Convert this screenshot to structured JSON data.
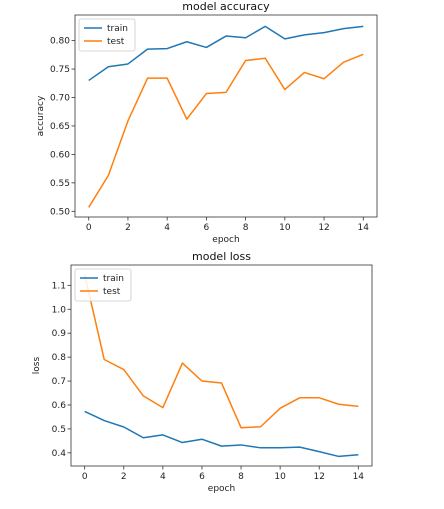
{
  "chart_data": [
    {
      "type": "line",
      "title": "model accuracy",
      "xlabel": "epoch",
      "ylabel": "accuracy",
      "x": [
        0,
        1,
        2,
        3,
        4,
        5,
        6,
        7,
        8,
        9,
        10,
        11,
        12,
        13,
        14
      ],
      "xlim": [
        -0.7,
        14.7
      ],
      "ylim": [
        0.49,
        0.845
      ],
      "xticks": [
        0,
        2,
        4,
        6,
        8,
        10,
        12,
        14
      ],
      "yticks": [
        0.5,
        0.55,
        0.6,
        0.65,
        0.7,
        0.75,
        0.8
      ],
      "ytick_labels": [
        "0.50",
        "0.55",
        "0.60",
        "0.65",
        "0.70",
        "0.75",
        "0.80"
      ],
      "grid": false,
      "legend_position": "top-left",
      "series": [
        {
          "name": "train",
          "color": "#1f77b4",
          "values": [
            0.73,
            0.754,
            0.759,
            0.785,
            0.786,
            0.798,
            0.788,
            0.808,
            0.805,
            0.825,
            0.803,
            0.81,
            0.814,
            0.821,
            0.825
          ]
        },
        {
          "name": "test",
          "color": "#ff7f0e",
          "values": [
            0.507,
            0.563,
            0.659,
            0.734,
            0.734,
            0.662,
            0.707,
            0.709,
            0.765,
            0.769,
            0.714,
            0.744,
            0.733,
            0.762,
            0.776
          ]
        }
      ]
    },
    {
      "type": "line",
      "title": "model loss",
      "xlabel": "epoch",
      "ylabel": "loss",
      "x": [
        0,
        1,
        2,
        3,
        4,
        5,
        6,
        7,
        8,
        9,
        10,
        11,
        12,
        13,
        14
      ],
      "xlim": [
        -0.7,
        14.7
      ],
      "ylim": [
        0.345,
        1.185
      ],
      "xticks": [
        0,
        2,
        4,
        6,
        8,
        10,
        12,
        14
      ],
      "yticks": [
        0.4,
        0.5,
        0.6,
        0.7,
        0.8,
        0.9,
        1.0,
        1.1
      ],
      "ytick_labels": [
        "0.4",
        "0.5",
        "0.6",
        "0.7",
        "0.8",
        "0.9",
        "1.0",
        "1.1"
      ],
      "grid": false,
      "legend_position": "top-left",
      "series": [
        {
          "name": "train",
          "color": "#1f77b4",
          "values": [
            0.573,
            0.535,
            0.508,
            0.463,
            0.475,
            0.443,
            0.457,
            0.428,
            0.433,
            0.421,
            0.421,
            0.424,
            0.405,
            0.385,
            0.392
          ]
        },
        {
          "name": "test",
          "color": "#ff7f0e",
          "values": [
            1.145,
            0.79,
            0.748,
            0.638,
            0.589,
            0.775,
            0.7,
            0.692,
            0.505,
            0.509,
            0.586,
            0.63,
            0.63,
            0.603,
            0.594
          ]
        }
      ]
    }
  ]
}
